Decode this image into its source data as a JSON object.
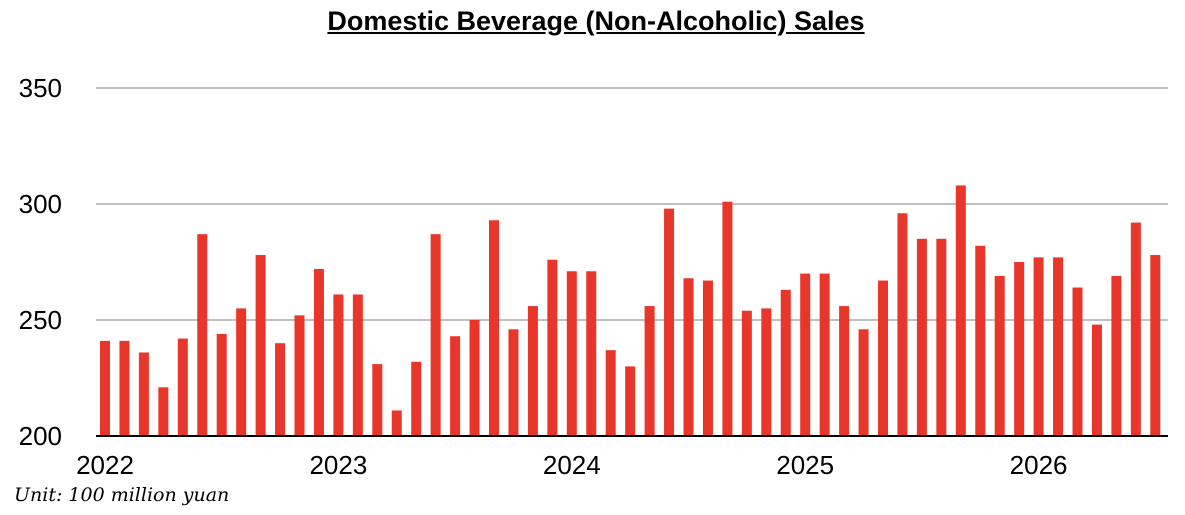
{
  "chart_data": {
    "type": "bar",
    "title": "Domestic Beverage (Non-Alcoholic) Sales",
    "unit_note": "Unit: 100 million yuan",
    "xlabel": "",
    "ylabel": "",
    "ylim": [
      200,
      350
    ],
    "yticks": [
      200,
      250,
      300,
      350
    ],
    "year_labels": [
      "2022",
      "2023",
      "2024",
      "2025",
      "2026"
    ],
    "grid": true,
    "bar_color": "#e8362a",
    "categories": [
      "2022-01",
      "2022-02",
      "2022-03",
      "2022-04",
      "2022-05",
      "2022-06",
      "2022-07",
      "2022-08",
      "2022-09",
      "2022-10",
      "2022-11",
      "2022-12",
      "2023-01",
      "2023-02",
      "2023-03",
      "2023-04",
      "2023-05",
      "2023-06",
      "2023-07",
      "2023-08",
      "2023-09",
      "2023-10",
      "2023-11",
      "2023-12",
      "2024-01",
      "2024-02",
      "2024-03",
      "2024-04",
      "2024-05",
      "2024-06",
      "2024-07",
      "2024-08",
      "2024-09",
      "2024-10",
      "2024-11",
      "2024-12",
      "2025-01",
      "2025-02",
      "2025-03",
      "2025-04",
      "2025-05",
      "2025-06",
      "2025-07",
      "2025-08",
      "2025-09",
      "2025-10",
      "2025-11",
      "2025-12",
      "2026-01",
      "2026-02",
      "2026-03",
      "2026-04",
      "2026-05",
      "2026-06",
      "2026-07"
    ],
    "values": [
      241,
      241,
      236,
      221,
      242,
      287,
      244,
      255,
      278,
      240,
      252,
      272,
      261,
      261,
      231,
      211,
      232,
      287,
      243,
      250,
      293,
      246,
      256,
      276,
      271,
      271,
      237,
      230,
      256,
      298,
      268,
      267,
      301,
      254,
      255,
      263,
      270,
      270,
      256,
      246,
      267,
      296,
      285,
      285,
      308,
      282,
      269,
      275,
      277,
      277,
      264,
      248,
      269,
      292,
      278
    ]
  }
}
